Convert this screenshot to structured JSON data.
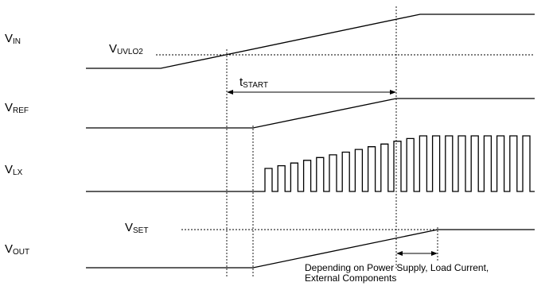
{
  "labels": {
    "vin": {
      "main": "V",
      "sub": "IN"
    },
    "vuvlo": {
      "main": "V",
      "sub": "UVLO2"
    },
    "tstart": {
      "main": "t",
      "sub": "START"
    },
    "vref": {
      "main": "V",
      "sub": "REF"
    },
    "vlx": {
      "main": "V",
      "sub": "LX"
    },
    "vset": {
      "main": "V",
      "sub": "SET"
    },
    "vout": {
      "main": "V",
      "sub": "OUT"
    }
  },
  "note": {
    "line1": "Depending on Power Supply, Load Current,",
    "line2": "External Components"
  },
  "lx_pulse_count": 21
}
